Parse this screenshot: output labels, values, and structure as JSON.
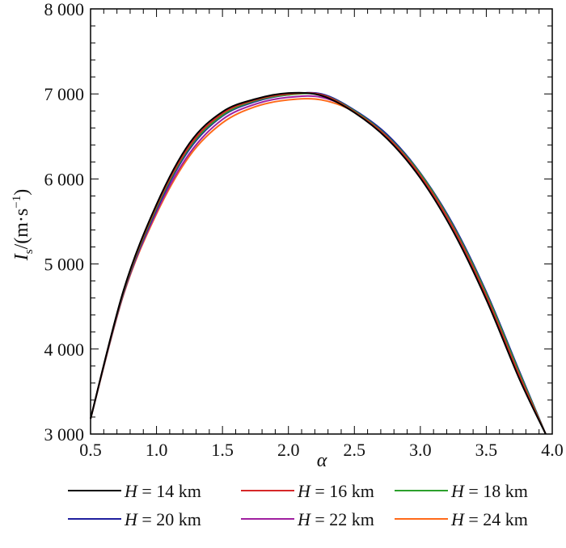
{
  "chart_data": {
    "type": "line",
    "title": "",
    "xlabel": "α",
    "ylabel": {
      "main": "I",
      "sub": "s",
      "unit": "/(m·s",
      "sup": "−1",
      "close": ")"
    },
    "xlim": [
      0.5,
      4.0
    ],
    "ylim": [
      3000,
      8000
    ],
    "xticks": [
      0.5,
      1.0,
      1.5,
      2.0,
      2.5,
      3.0,
      3.5,
      4.0
    ],
    "xtick_labels": [
      "0.5",
      "1.0",
      "1.5",
      "2.0",
      "2.5",
      "3.0",
      "3.5",
      "4.0"
    ],
    "yticks": [
      3000,
      4000,
      5000,
      6000,
      7000,
      8000
    ],
    "ytick_labels": [
      "3 000",
      "4 000",
      "5 000",
      "6 000",
      "7 000",
      "8 000"
    ],
    "grid": false,
    "legend_position": "bottom",
    "x": [
      0.5,
      0.75,
      1.0,
      1.25,
      1.5,
      1.75,
      2.0,
      2.25,
      2.5,
      2.75,
      3.0,
      3.25,
      3.5,
      3.75,
      3.95
    ],
    "series": [
      {
        "name": "H = 14 km",
        "legend_var": "H",
        "legend_rest": " = 14 km",
        "color": "#000000",
        "values": [
          3180,
          4690,
          5700,
          6420,
          6790,
          6940,
          7010,
          6980,
          6780,
          6470,
          6010,
          5380,
          4580,
          3650,
          3000
        ]
      },
      {
        "name": "H = 16 km",
        "legend_var": "H",
        "legend_rest": " = 16 km",
        "color": "#d62728",
        "values": [
          3180,
          4680,
          5680,
          6390,
          6770,
          6930,
          7000,
          6990,
          6790,
          6490,
          6040,
          5420,
          4620,
          3690,
          3000
        ]
      },
      {
        "name": "H = 18 km",
        "legend_var": "H",
        "legend_rest": " = 18 km",
        "color": "#2ca02c",
        "values": [
          3180,
          4670,
          5660,
          6370,
          6750,
          6920,
          6990,
          6990,
          6800,
          6500,
          6060,
          5440,
          4650,
          3720,
          3000
        ]
      },
      {
        "name": "H = 20 km",
        "legend_var": "H",
        "legend_rest": " = 20 km",
        "color": "#1f1f9e",
        "values": [
          3180,
          4660,
          5640,
          6350,
          6740,
          6910,
          6990,
          7000,
          6810,
          6520,
          6070,
          5460,
          4670,
          3740,
          3000
        ]
      },
      {
        "name": "H = 22 km",
        "legend_var": "H",
        "legend_rest": " = 22 km",
        "color": "#a020a0",
        "values": [
          3180,
          4650,
          5610,
          6300,
          6700,
          6880,
          6960,
          6960,
          6800,
          6510,
          6060,
          5450,
          4660,
          3730,
          3000
        ]
      },
      {
        "name": "H = 24 km",
        "legend_var": "H",
        "legend_rest": " = 24 km",
        "color": "#ff6a1a",
        "values": [
          3180,
          4640,
          5590,
          6270,
          6660,
          6850,
          6930,
          6930,
          6790,
          6500,
          6050,
          5440,
          4650,
          3720,
          3000
        ]
      }
    ]
  }
}
